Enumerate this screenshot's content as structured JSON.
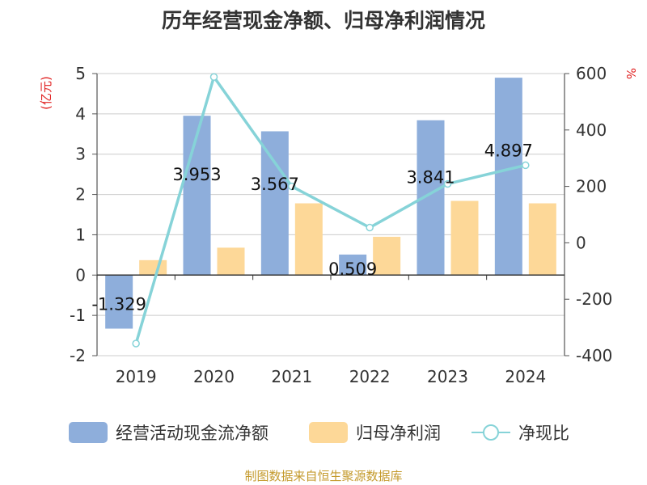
{
  "chart_data": {
    "type": "bar",
    "title": "历年经营现金净额、归母净利润情况",
    "categories": [
      "2019",
      "2020",
      "2021",
      "2022",
      "2023",
      "2024"
    ],
    "series": [
      {
        "name": "经营活动现金流净额",
        "type": "bar",
        "axis": "left",
        "values": [
          -1.329,
          3.953,
          3.567,
          0.509,
          3.841,
          4.897
        ],
        "labels": [
          "-1.329",
          "3.953",
          "3.567",
          "0.509",
          "3.841",
          "4.897"
        ]
      },
      {
        "name": "归母净利润",
        "type": "bar",
        "axis": "left",
        "values": [
          0.37,
          0.68,
          1.78,
          0.95,
          1.84,
          1.78
        ]
      },
      {
        "name": "净现比",
        "type": "line",
        "axis": "right",
        "values": [
          -357,
          588,
          200,
          54,
          209,
          275
        ]
      }
    ],
    "y_left": {
      "label": "(亿元)",
      "min": -2,
      "max": 5,
      "ticks": [
        "5",
        "4",
        "3",
        "2",
        "1",
        "0",
        "-1",
        "-2"
      ]
    },
    "y_right": {
      "label": "%",
      "min": -400,
      "max": 600,
      "ticks": [
        "600",
        "400",
        "200",
        "0",
        "-200",
        "-400"
      ]
    },
    "legend_position": "bottom",
    "grid": true,
    "colors": {
      "operating_cash": "#8eaedb",
      "net_profit": "#fdd898",
      "ratio_line": "#86d3d8",
      "axis_label_red": "#e02020",
      "source_text": "#c49a2c"
    },
    "source": "制图数据来自恒生聚源数据库"
  }
}
